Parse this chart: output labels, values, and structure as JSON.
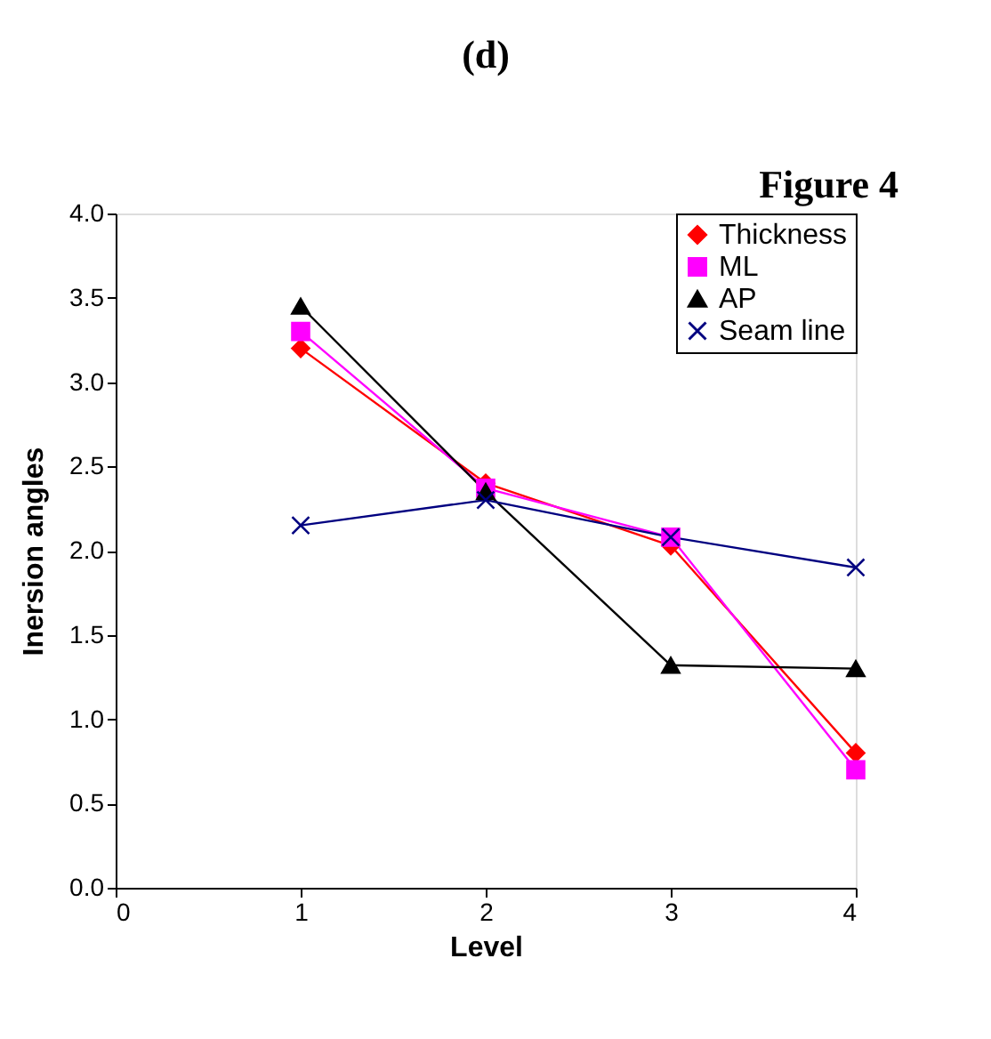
{
  "chart_data": {
    "type": "line",
    "title": "(d)",
    "annotations": [
      "Figure 4"
    ],
    "xlabel": "Level",
    "ylabel": "Inersion angles",
    "x": [
      1,
      2,
      3,
      4
    ],
    "xlim": [
      0,
      4
    ],
    "xticks": [
      0,
      1,
      2,
      3,
      4
    ],
    "ylim": [
      0,
      4
    ],
    "yticks": [
      {
        "value": 0,
        "label": "0.0"
      },
      0.5,
      {
        "value": 1,
        "label": "1.0"
      },
      1.5,
      {
        "value": 2,
        "label": "2.0"
      },
      2.5,
      {
        "value": 3,
        "label": "3.0"
      },
      3.5,
      {
        "value": 4,
        "label": "4.0"
      }
    ],
    "grid": false,
    "legend": "top right",
    "line_style": "solid",
    "series": [
      {
        "name": "Thickness",
        "color": "#ff0000",
        "marker": "diamond",
        "values": [
          3.2,
          2.4,
          2.03,
          0.8
        ]
      },
      {
        "name": "ML",
        "color": "#ff00ff",
        "marker": "square",
        "values": [
          3.3,
          2.37,
          2.08,
          0.7
        ]
      },
      {
        "name": "AP",
        "color": "#000000",
        "marker": "triangle",
        "values": [
          3.45,
          2.35,
          1.32,
          1.3
        ]
      },
      {
        "name": "Seam line",
        "color": "#000080",
        "marker": "cross",
        "values": [
          2.15,
          2.3,
          2.08,
          1.9
        ]
      }
    ]
  }
}
